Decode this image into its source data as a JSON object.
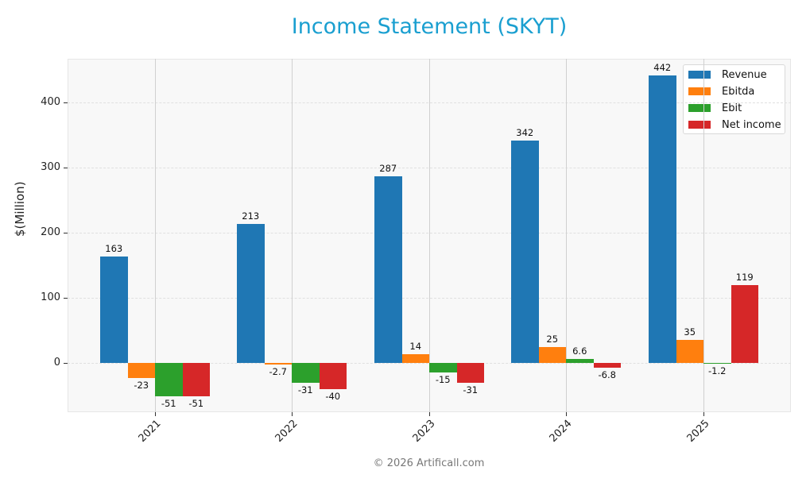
{
  "chart_data": {
    "type": "bar",
    "title": "Income Statement (SKYT)",
    "xlabel": "",
    "ylabel": "$(Million)",
    "categories": [
      "2021",
      "2022",
      "2023",
      "2024",
      "2025"
    ],
    "series": [
      {
        "name": "Revenue",
        "color": "#1f77b4",
        "values": [
          163,
          213,
          287,
          342,
          442
        ],
        "labels": [
          "163",
          "213",
          "287",
          "342",
          "442"
        ]
      },
      {
        "name": "Ebitda",
        "color": "#ff7f0e",
        "values": [
          -23,
          -2.7,
          14,
          25,
          35
        ],
        "labels": [
          "-23",
          "-2.7",
          "14",
          "25",
          "35"
        ]
      },
      {
        "name": "Ebit",
        "color": "#2ca02c",
        "values": [
          -51,
          -31,
          -15,
          6.6,
          -1.2
        ],
        "labels": [
          "-51",
          "-31",
          "-15",
          "6.6",
          "-1.2"
        ]
      },
      {
        "name": "Net income",
        "color": "#d62728",
        "values": [
          -51,
          -40,
          -31,
          -6.8,
          119
        ],
        "labels": [
          "-51",
          "-40",
          "-31",
          "-6.8",
          "119"
        ]
      }
    ],
    "yticks": [
      0,
      100,
      200,
      300,
      400
    ],
    "ylim": [
      -75,
      467
    ],
    "grid": true,
    "legend_position": "upper right"
  },
  "footer": "© 2026 Artificall.com"
}
